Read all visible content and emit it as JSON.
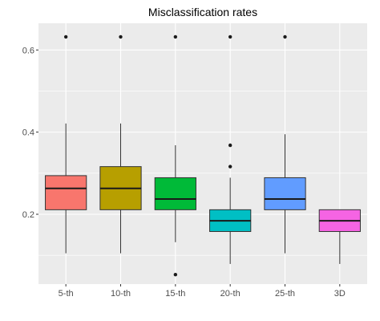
{
  "chart_data": {
    "type": "boxplot",
    "title": "Misclassification rates",
    "xlabel": "",
    "ylabel": "",
    "categories": [
      "5-th",
      "10-th",
      "15-th",
      "20-th",
      "25-th",
      "3D"
    ],
    "ylim": [
      0.03,
      0.665
    ],
    "yticks": [
      0.2,
      0.4,
      0.6
    ],
    "ytick_labels": [
      "0.2",
      "0.4",
      "0.6"
    ],
    "grid": true,
    "legend": "none",
    "boxes": [
      {
        "category": "5-th",
        "color": "#F8766D",
        "whisker_low": 0.105,
        "q1": 0.211,
        "median": 0.263,
        "q3": 0.294,
        "whisker_high": 0.421,
        "outliers": [
          0.632
        ]
      },
      {
        "category": "10-th",
        "color": "#B79F00",
        "whisker_low": 0.105,
        "q1": 0.211,
        "median": 0.263,
        "q3": 0.316,
        "whisker_high": 0.421,
        "outliers": [
          0.632
        ]
      },
      {
        "category": "15-th",
        "color": "#00BA38",
        "whisker_low": 0.132,
        "q1": 0.211,
        "median": 0.237,
        "q3": 0.289,
        "whisker_high": 0.368,
        "outliers": [
          0.632,
          0.053
        ]
      },
      {
        "category": "20-th",
        "color": "#00BFC4",
        "whisker_low": 0.079,
        "q1": 0.158,
        "median": 0.184,
        "q3": 0.211,
        "whisker_high": 0.289,
        "outliers": [
          0.632,
          0.368,
          0.316
        ]
      },
      {
        "category": "25-th",
        "color": "#619CFF",
        "whisker_low": 0.105,
        "q1": 0.211,
        "median": 0.237,
        "q3": 0.289,
        "whisker_high": 0.395,
        "outliers": [
          0.632
        ]
      },
      {
        "category": "3D",
        "color": "#F564E3",
        "whisker_low": 0.079,
        "q1": 0.158,
        "median": 0.184,
        "q3": 0.211,
        "whisker_high": 0.211,
        "outliers": []
      }
    ],
    "panel_background": "#EBEBEB",
    "grid_color": "#FFFFFF"
  }
}
